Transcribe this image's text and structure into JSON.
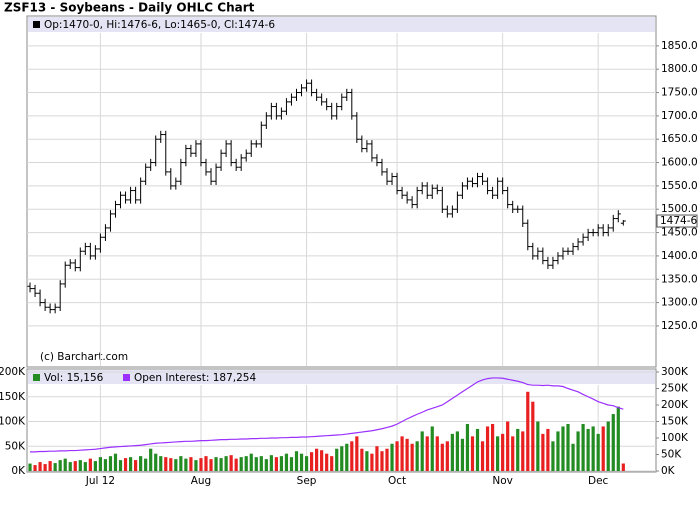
{
  "chart_data": [
    {
      "type": "ohlc",
      "title": "ZSF13 - Soybeans - Daily OHLC Chart",
      "ohlc_label": "Op:1470-0, Hi:1476-6, Lo:1465-0, Cl:1474-6",
      "copyright": "(c) Barchart.com",
      "last_label": "1474-6",
      "color": "#000000",
      "grid": true,
      "xlim": [
        -0.6,
        124.5
      ],
      "ylim": [
        1162,
        1914
      ],
      "yticks": [
        {
          "value": 1250,
          "label": "1250.0"
        },
        {
          "value": 1300,
          "label": "1300.0"
        },
        {
          "value": 1350,
          "label": "1350.0"
        },
        {
          "value": 1400,
          "label": "1400.0"
        },
        {
          "value": 1450,
          "label": "1450.0"
        },
        {
          "value": 1500,
          "label": "1500.0"
        },
        {
          "value": 1550,
          "label": "1550.0"
        },
        {
          "value": 1600,
          "label": "1600.0"
        },
        {
          "value": 1650,
          "label": "1650.0"
        },
        {
          "value": 1700,
          "label": "1700.0"
        },
        {
          "value": 1750,
          "label": "1750.0"
        },
        {
          "value": 1800,
          "label": "1800.0"
        },
        {
          "value": 1850,
          "label": "1850.0"
        }
      ],
      "open": [
        1335,
        1330,
        1320,
        1300,
        1290,
        1285,
        1290,
        1340,
        1380,
        1385,
        1375,
        1410,
        1420,
        1400,
        1415,
        1440,
        1460,
        1490,
        1510,
        1530,
        1520,
        1540,
        1520,
        1560,
        1590,
        1600,
        1650,
        1660,
        1580,
        1550,
        1560,
        1600,
        1630,
        1620,
        1640,
        1600,
        1580,
        1560,
        1590,
        1620,
        1640,
        1600,
        1590,
        1610,
        1620,
        1640,
        1640,
        1680,
        1700,
        1720,
        1700,
        1710,
        1730,
        1740,
        1750,
        1760,
        1770,
        1750,
        1740,
        1730,
        1720,
        1700,
        1720,
        1740,
        1750,
        1700,
        1650,
        1630,
        1640,
        1610,
        1600,
        1580,
        1560,
        1570,
        1540,
        1530,
        1520,
        1510,
        1540,
        1550,
        1530,
        1545,
        1540,
        1500,
        1490,
        1500,
        1530,
        1550,
        1560,
        1555,
        1570,
        1560,
        1540,
        1530,
        1560,
        1540,
        1510,
        1500,
        1500,
        1470,
        1420,
        1400,
        1410,
        1390,
        1380,
        1390,
        1400,
        1410,
        1410,
        1420,
        1430,
        1440,
        1450,
        1450,
        1460,
        1450,
        1460,
        1480,
        1470
      ],
      "high": [
        1343,
        1338,
        1328,
        1308,
        1298,
        1298,
        1348,
        1388,
        1393,
        1393,
        1418,
        1428,
        1428,
        1423,
        1448,
        1468,
        1498,
        1518,
        1538,
        1538,
        1548,
        1548,
        1568,
        1598,
        1608,
        1658,
        1668,
        1668,
        1588,
        1568,
        1608,
        1638,
        1638,
        1648,
        1648,
        1608,
        1588,
        1598,
        1628,
        1648,
        1648,
        1608,
        1618,
        1628,
        1648,
        1648,
        1688,
        1708,
        1728,
        1728,
        1718,
        1738,
        1748,
        1758,
        1768,
        1778,
        1778,
        1758,
        1748,
        1738,
        1728,
        1728,
        1748,
        1758,
        1758,
        1708,
        1658,
        1648,
        1648,
        1618,
        1608,
        1588,
        1578,
        1578,
        1548,
        1538,
        1528,
        1548,
        1558,
        1558,
        1553,
        1553,
        1548,
        1508,
        1508,
        1538,
        1558,
        1568,
        1568,
        1578,
        1578,
        1568,
        1548,
        1568,
        1568,
        1548,
        1518,
        1508,
        1508,
        1478,
        1428,
        1418,
        1418,
        1398,
        1398,
        1408,
        1418,
        1418,
        1428,
        1438,
        1448,
        1458,
        1458,
        1468,
        1468,
        1468,
        1488,
        1498,
        1476.75
      ],
      "low": [
        1322,
        1312,
        1292,
        1282,
        1277,
        1277,
        1282,
        1332,
        1372,
        1367,
        1367,
        1402,
        1392,
        1392,
        1407,
        1432,
        1452,
        1482,
        1502,
        1512,
        1512,
        1512,
        1512,
        1552,
        1582,
        1592,
        1642,
        1572,
        1542,
        1542,
        1552,
        1592,
        1612,
        1612,
        1592,
        1572,
        1552,
        1552,
        1582,
        1612,
        1592,
        1582,
        1582,
        1602,
        1612,
        1632,
        1632,
        1672,
        1692,
        1692,
        1692,
        1702,
        1722,
        1732,
        1742,
        1752,
        1742,
        1732,
        1722,
        1712,
        1692,
        1692,
        1712,
        1732,
        1692,
        1642,
        1622,
        1622,
        1602,
        1592,
        1572,
        1552,
        1552,
        1532,
        1522,
        1512,
        1502,
        1502,
        1532,
        1522,
        1522,
        1532,
        1492,
        1482,
        1482,
        1492,
        1522,
        1542,
        1547,
        1547,
        1552,
        1532,
        1522,
        1522,
        1532,
        1502,
        1492,
        1492,
        1462,
        1412,
        1392,
        1392,
        1382,
        1372,
        1372,
        1382,
        1392,
        1402,
        1402,
        1412,
        1422,
        1432,
        1442,
        1442,
        1442,
        1442,
        1452,
        1472,
        1465
      ],
      "close": [
        1330,
        1320,
        1300,
        1290,
        1285,
        1290,
        1340,
        1380,
        1385,
        1375,
        1410,
        1420,
        1400,
        1415,
        1440,
        1460,
        1490,
        1510,
        1530,
        1520,
        1540,
        1520,
        1560,
        1590,
        1600,
        1650,
        1660,
        1580,
        1550,
        1560,
        1600,
        1630,
        1620,
        1640,
        1600,
        1580,
        1560,
        1590,
        1620,
        1640,
        1600,
        1590,
        1610,
        1620,
        1640,
        1640,
        1680,
        1700,
        1720,
        1700,
        1710,
        1730,
        1740,
        1750,
        1760,
        1770,
        1750,
        1740,
        1730,
        1720,
        1700,
        1720,
        1740,
        1750,
        1700,
        1650,
        1630,
        1640,
        1610,
        1600,
        1580,
        1560,
        1570,
        1540,
        1530,
        1520,
        1510,
        1540,
        1550,
        1530,
        1545,
        1540,
        1500,
        1490,
        1500,
        1530,
        1550,
        1560,
        1555,
        1570,
        1560,
        1540,
        1530,
        1560,
        1540,
        1510,
        1500,
        1500,
        1470,
        1420,
        1400,
        1410,
        1390,
        1380,
        1390,
        1400,
        1410,
        1410,
        1420,
        1430,
        1440,
        1450,
        1450,
        1460,
        1450,
        1460,
        1480,
        1490,
        1474.75
      ]
    },
    {
      "type": "bar",
      "grid": true,
      "xlim": [
        -0.6,
        124.5
      ],
      "xticks": [
        {
          "value": 14,
          "label": "Jul 12"
        },
        {
          "value": 34,
          "label": "Aug"
        },
        {
          "value": 55,
          "label": "Sep"
        },
        {
          "value": 73,
          "label": "Oct"
        },
        {
          "value": 94,
          "label": "Nov"
        },
        {
          "value": 113,
          "label": "Dec"
        }
      ],
      "ylim": [
        0,
        200
      ],
      "yticks": [
        {
          "value": 0,
          "label": "0K"
        },
        {
          "value": 50,
          "label": "50K"
        },
        {
          "value": 100,
          "label": "100K"
        },
        {
          "value": 150,
          "label": "150K"
        },
        {
          "value": 200,
          "label": "200K"
        }
      ],
      "y2lim": [
        0,
        300
      ],
      "y2ticks": [
        {
          "value": 0,
          "label": "0K"
        },
        {
          "value": 50,
          "label": "50K"
        },
        {
          "value": 100,
          "label": "100K"
        },
        {
          "value": 150,
          "label": "150K"
        },
        {
          "value": 200,
          "label": "200K"
        },
        {
          "value": 250,
          "label": "250K"
        },
        {
          "value": 300,
          "label": "300K"
        }
      ],
      "series": [
        {
          "name": "Vol: 15,156",
          "color": "#228b22",
          "up_color": "#228b22",
          "down_color": "#e82020",
          "values": [
            15,
            12,
            18,
            14,
            20,
            16,
            22,
            25,
            18,
            20,
            22,
            18,
            25,
            20,
            28,
            24,
            30,
            35,
            22,
            26,
            28,
            22,
            30,
            25,
            45,
            35,
            30,
            28,
            26,
            24,
            30,
            25,
            28,
            22,
            26,
            30,
            24,
            28,
            26,
            30,
            32,
            25,
            28,
            30,
            35,
            28,
            30,
            24,
            32,
            28,
            30,
            35,
            28,
            40,
            35,
            30,
            38,
            45,
            42,
            35,
            30,
            45,
            50,
            55,
            60,
            70,
            45,
            40,
            35,
            50,
            40,
            45,
            55,
            60,
            70,
            65,
            55,
            60,
            80,
            70,
            90,
            70,
            55,
            60,
            75,
            80,
            65,
            95,
            70,
            85,
            60,
            90,
            95,
            70,
            75,
            100,
            70,
            85,
            80,
            160,
            140,
            100,
            75,
            85,
            60,
            80,
            90,
            95,
            55,
            80,
            95,
            85,
            90,
            75,
            90,
            100,
            115,
            130,
            15.156
          ]
        },
        {
          "name": "Open Interest: 187,254",
          "color": "#9b30ff",
          "axis": "y2",
          "values": [
            58,
            58,
            59,
            59,
            60,
            60,
            61,
            61,
            62,
            62,
            63,
            64,
            65,
            66,
            68,
            70,
            72,
            73,
            74,
            75,
            76,
            77,
            78,
            80,
            82,
            84,
            85,
            86,
            87,
            88,
            89,
            90,
            90,
            91,
            92,
            92,
            93,
            94,
            95,
            95,
            96,
            96,
            97,
            97,
            98,
            98,
            99,
            99,
            100,
            100,
            101,
            101,
            102,
            102,
            103,
            103,
            104,
            105,
            106,
            107,
            108,
            109,
            110,
            112,
            114,
            116,
            118,
            120,
            122,
            125,
            128,
            132,
            136,
            142,
            150,
            158,
            165,
            172,
            178,
            185,
            190,
            195,
            200,
            210,
            220,
            230,
            240,
            250,
            260,
            270,
            276,
            280,
            282,
            282,
            281,
            278,
            275,
            272,
            268,
            262,
            260,
            260,
            259,
            260,
            258,
            258,
            256,
            250,
            245,
            240,
            232,
            225,
            218,
            210,
            205,
            200,
            198,
            192,
            187.254
          ]
        }
      ]
    }
  ]
}
